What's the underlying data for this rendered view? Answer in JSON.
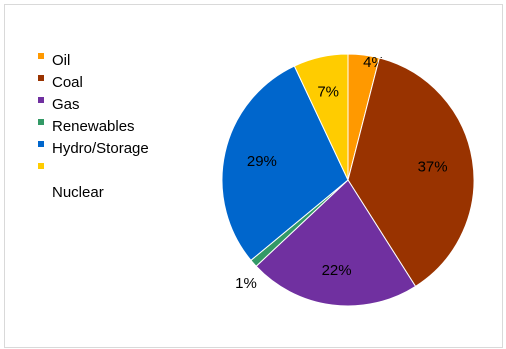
{
  "chart_data": {
    "type": "pie",
    "series": [
      {
        "name": "Oil",
        "value": 4,
        "label": "4%",
        "color": "#ff9900"
      },
      {
        "name": "Coal",
        "value": 37,
        "label": "37%",
        "color": "#993300"
      },
      {
        "name": "Gas",
        "value": 22,
        "label": "22%",
        "color": "#7030a0"
      },
      {
        "name": "Renewables",
        "value": 1,
        "label": "1%",
        "color": "#339966"
      },
      {
        "name": "Hydro/Storage",
        "value": 29,
        "label": "29%",
        "color": "#0066cc"
      },
      {
        "name": "Nuclear",
        "value": 7,
        "label": "7%",
        "color": "#ffcc00"
      }
    ],
    "legend_position": "left",
    "start": "top, clockwise"
  }
}
